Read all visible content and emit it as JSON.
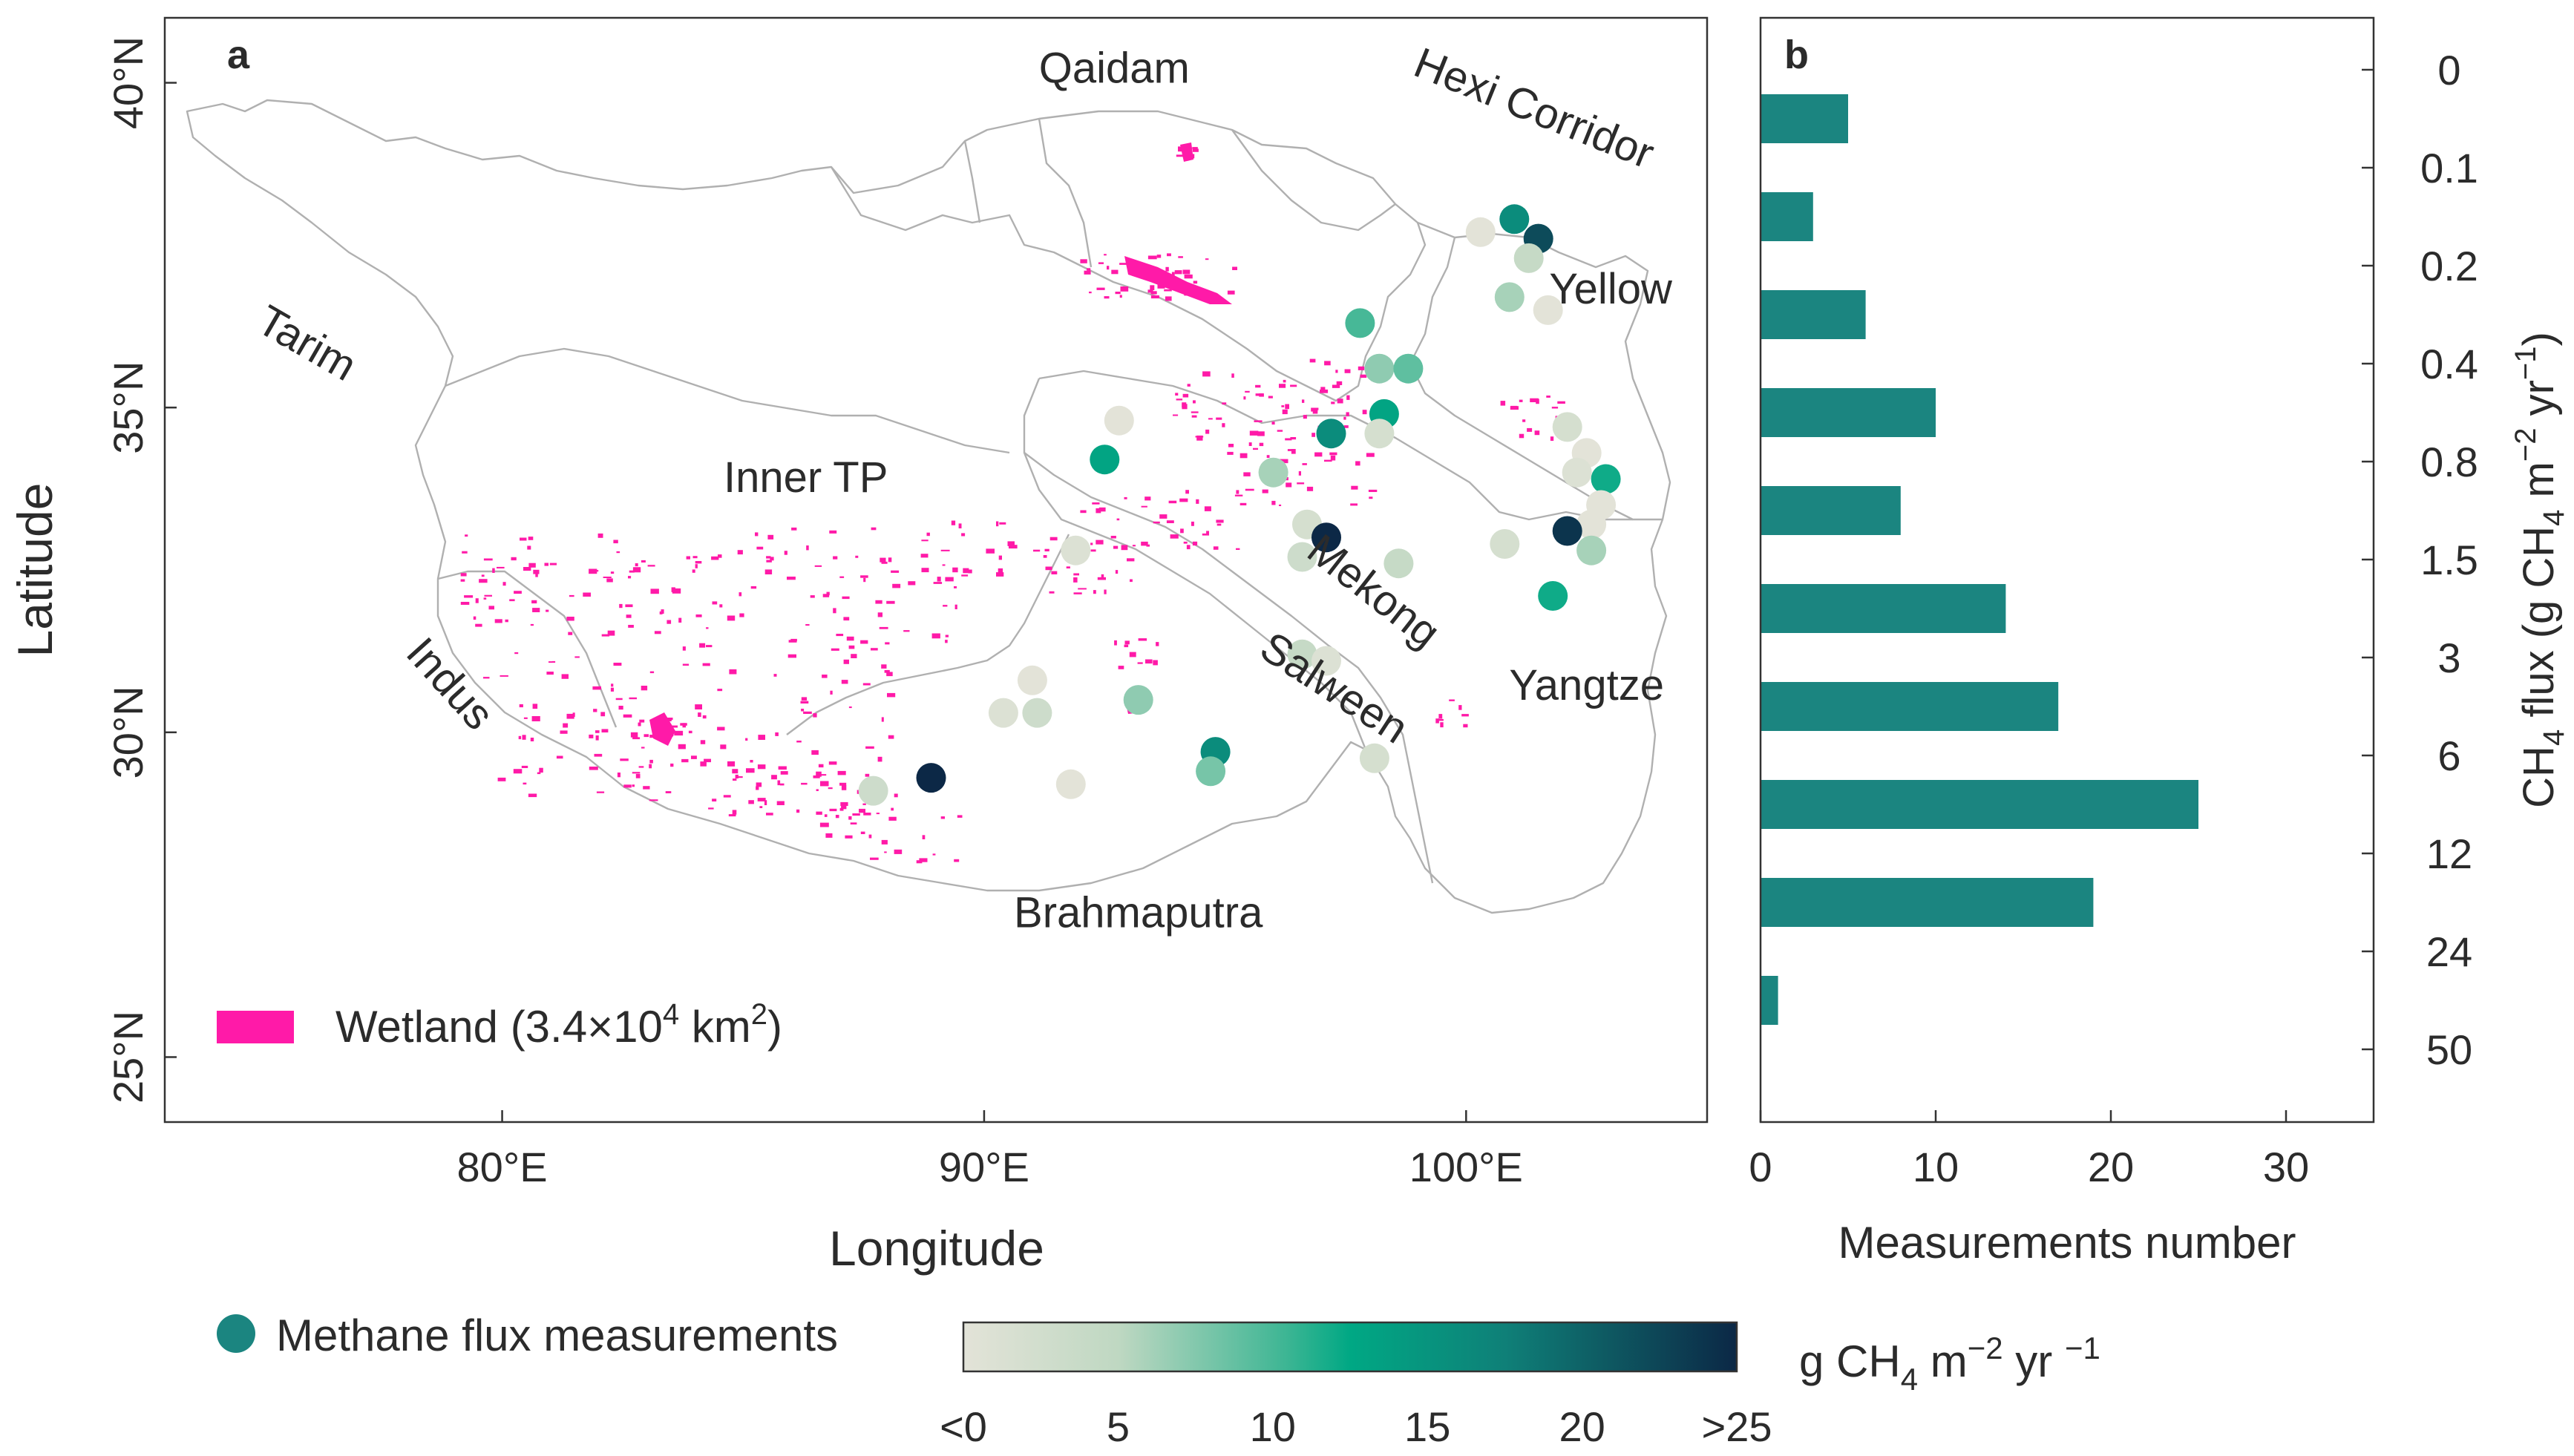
{
  "colors": {
    "wetland": "#ff1aa8",
    "bar": "#1b8580",
    "grad_low": "#e0e0d5",
    "grad_mid": "#0aa987",
    "grad_high": "#0d2b47",
    "boundary": "#aaaaaa",
    "axis": "#222222"
  },
  "legend": {
    "wetland_prefix": "Wetland (3.4×10",
    "wetland_exp": "4",
    "wetland_mid": " km",
    "wetland_exp2": "2",
    "wetland_suffix": ")",
    "flux_label": "Methane flux measurements"
  },
  "colorbar": {
    "ticks": [
      "<0",
      "5",
      "10",
      "15",
      "20",
      ">25"
    ],
    "unit_g": "g CH",
    "unit_sub": "4",
    "unit_m": " m",
    "unit_sup": "−2",
    "unit_yr": " yr ",
    "unit_sup2": "−1"
  },
  "chart_data": [
    {
      "type": "scatter",
      "panel": "a",
      "title": "a",
      "xlabel": "Longitude",
      "ylabel": "Latitude",
      "xlim": [
        73,
        105
      ],
      "ylim": [
        24,
        41
      ],
      "x_ticks": [
        {
          "value": 80,
          "label": "80°E"
        },
        {
          "value": 90,
          "label": "90°E"
        },
        {
          "value": 100,
          "label": "100°E"
        }
      ],
      "y_ticks": [
        {
          "value": 25,
          "label": "25°N"
        },
        {
          "value": 30,
          "label": "30°N"
        },
        {
          "value": 35,
          "label": "35°N"
        },
        {
          "value": 40,
          "label": "40°N"
        }
      ],
      "regions": [
        {
          "name": "Qaidam",
          "lon": 92.7,
          "lat": 40.0
        },
        {
          "name": "Hexi Corridor",
          "lon": 101.3,
          "lat": 39.4,
          "rotate": 22
        },
        {
          "name": "Yellow",
          "lon": 103.0,
          "lat": 36.6
        },
        {
          "name": "Tarim",
          "lon": 75.8,
          "lat": 35.8,
          "rotate": 30
        },
        {
          "name": "Inner TP",
          "lon": 86.3,
          "lat": 33.7
        },
        {
          "name": "Mekong",
          "lon": 97.9,
          "lat": 32.0,
          "rotate": 38
        },
        {
          "name": "Indus",
          "lon": 78.7,
          "lat": 30.6,
          "rotate": 48
        },
        {
          "name": "Salween",
          "lon": 97.1,
          "lat": 30.5,
          "rotate": 33
        },
        {
          "name": "Yangtze",
          "lon": 102.5,
          "lat": 30.5
        },
        {
          "name": "Brahmaputra",
          "lon": 93.2,
          "lat": 27.0
        }
      ],
      "points": [
        {
          "lon": 101.0,
          "lat": 37.9,
          "flux": 16
        },
        {
          "lon": 101.5,
          "lat": 37.6,
          "flux": 22
        },
        {
          "lon": 100.3,
          "lat": 37.7,
          "flux": 0
        },
        {
          "lon": 101.3,
          "lat": 37.3,
          "flux": 4
        },
        {
          "lon": 100.9,
          "lat": 36.7,
          "flux": 6
        },
        {
          "lon": 101.7,
          "lat": 36.5,
          "flux": -1
        },
        {
          "lon": 97.8,
          "lat": 36.3,
          "flux": 10
        },
        {
          "lon": 98.2,
          "lat": 35.6,
          "flux": 7
        },
        {
          "lon": 98.8,
          "lat": 35.6,
          "flux": 9
        },
        {
          "lon": 98.3,
          "lat": 34.9,
          "flux": 13
        },
        {
          "lon": 98.2,
          "lat": 34.6,
          "flux": 2
        },
        {
          "lon": 97.2,
          "lat": 34.6,
          "flux": 16
        },
        {
          "lon": 92.8,
          "lat": 34.8,
          "flux": 0
        },
        {
          "lon": 92.5,
          "lat": 34.2,
          "flux": 13
        },
        {
          "lon": 96.0,
          "lat": 34.0,
          "flux": 6
        },
        {
          "lon": 96.7,
          "lat": 33.2,
          "flux": 2
        },
        {
          "lon": 97.1,
          "lat": 33.0,
          "flux": 25
        },
        {
          "lon": 96.6,
          "lat": 32.7,
          "flux": 3
        },
        {
          "lon": 98.6,
          "lat": 32.6,
          "flux": 4
        },
        {
          "lon": 91.9,
          "lat": 32.8,
          "flux": 1
        },
        {
          "lon": 102.1,
          "lat": 34.7,
          "flux": 2
        },
        {
          "lon": 102.5,
          "lat": 34.3,
          "flux": 0
        },
        {
          "lon": 102.3,
          "lat": 34.0,
          "flux": 1
        },
        {
          "lon": 102.9,
          "lat": 33.9,
          "flux": 12
        },
        {
          "lon": 102.8,
          "lat": 33.5,
          "flux": 0
        },
        {
          "lon": 102.6,
          "lat": 33.2,
          "flux": 0
        },
        {
          "lon": 102.1,
          "lat": 33.1,
          "flux": 24
        },
        {
          "lon": 102.6,
          "lat": 32.8,
          "flux": 6
        },
        {
          "lon": 100.8,
          "lat": 32.9,
          "flux": 2
        },
        {
          "lon": 101.8,
          "lat": 32.1,
          "flux": 12
        },
        {
          "lon": 96.6,
          "lat": 31.2,
          "flux": 4
        },
        {
          "lon": 97.1,
          "lat": 31.1,
          "flux": 1
        },
        {
          "lon": 91.0,
          "lat": 30.8,
          "flux": 0
        },
        {
          "lon": 90.4,
          "lat": 30.3,
          "flux": 1
        },
        {
          "lon": 91.1,
          "lat": 30.3,
          "flux": 3
        },
        {
          "lon": 93.2,
          "lat": 30.5,
          "flux": 7
        },
        {
          "lon": 94.8,
          "lat": 29.7,
          "flux": 16
        },
        {
          "lon": 94.7,
          "lat": 29.4,
          "flux": 8
        },
        {
          "lon": 98.1,
          "lat": 29.6,
          "flux": 2
        },
        {
          "lon": 91.8,
          "lat": 29.2,
          "flux": 0
        },
        {
          "lon": 88.9,
          "lat": 29.3,
          "flux": 25
        },
        {
          "lon": 87.7,
          "lat": 29.1,
          "flux": 3
        }
      ]
    },
    {
      "type": "bar",
      "orientation": "horizontal",
      "panel": "b",
      "title": "b",
      "xlabel": "Measurements number",
      "ylabel_parts": [
        "CH",
        "4",
        " flux (g CH",
        "4",
        " m",
        "−2",
        " yr",
        "−1",
        ")"
      ],
      "xlim": [
        0,
        35
      ],
      "x_ticks": [
        0,
        10,
        20,
        30
      ],
      "y_ticks": [
        "0",
        "0.1",
        "0.2",
        "0.4",
        "0.8",
        "1.5",
        "3",
        "6",
        "12",
        "24",
        "50"
      ],
      "categories": [
        "0–0.1",
        "0.1–0.2",
        "0.2–0.4",
        "0.4–0.8",
        "0.8–1.5",
        "1.5–3",
        "3–6",
        "6–12",
        "12–24",
        "24–50"
      ],
      "values": [
        5,
        3,
        6,
        10,
        8,
        14,
        17,
        25,
        19,
        1
      ]
    }
  ]
}
